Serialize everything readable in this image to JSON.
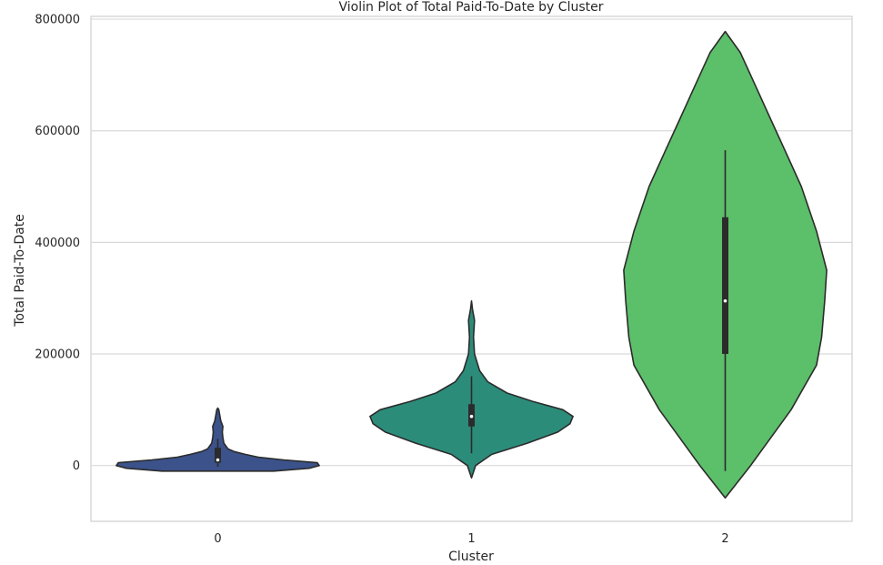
{
  "chart_data": {
    "type": "violin",
    "title": "Violin Plot of Total Paid-To-Date by Cluster",
    "xlabel": "Cluster",
    "ylabel": "Total Paid-To-Date",
    "categories": [
      "0",
      "1",
      "2"
    ],
    "ylim": [
      -100000,
      805000
    ],
    "yticks": [
      0,
      200000,
      400000,
      600000,
      800000
    ],
    "ytick_labels": [
      "0",
      "200000",
      "400000",
      "600000",
      "800000"
    ],
    "grid": true,
    "series": [
      {
        "category": "0",
        "color": "#3b528b",
        "min": -10000,
        "max": 103000,
        "q1": 5000,
        "median": 10000,
        "q3": 32000,
        "whisker_low": -2000,
        "whisker_high": 48000,
        "density": [
          [
            -10000,
            0.55
          ],
          [
            -5000,
            0.9
          ],
          [
            0,
            1.0
          ],
          [
            5000,
            0.98
          ],
          [
            10000,
            0.65
          ],
          [
            15000,
            0.4
          ],
          [
            20000,
            0.27
          ],
          [
            25000,
            0.16
          ],
          [
            30000,
            0.1
          ],
          [
            40000,
            0.06
          ],
          [
            50000,
            0.05
          ],
          [
            60000,
            0.045
          ],
          [
            70000,
            0.05
          ],
          [
            80000,
            0.03
          ],
          [
            90000,
            0.02
          ],
          [
            100000,
            0.01
          ],
          [
            103000,
            0.0
          ]
        ]
      },
      {
        "category": "1",
        "color": "#2c8c7a",
        "min": -22000,
        "max": 295000,
        "q1": 70000,
        "median": 88000,
        "q3": 110000,
        "whisker_low": 22000,
        "whisker_high": 160000,
        "density": [
          [
            -22000,
            0.0
          ],
          [
            0,
            0.04
          ],
          [
            20000,
            0.2
          ],
          [
            40000,
            0.55
          ],
          [
            60000,
            0.85
          ],
          [
            75000,
            0.97
          ],
          [
            88000,
            1.0
          ],
          [
            100000,
            0.9
          ],
          [
            115000,
            0.6
          ],
          [
            130000,
            0.35
          ],
          [
            150000,
            0.16
          ],
          [
            170000,
            0.08
          ],
          [
            200000,
            0.03
          ],
          [
            230000,
            0.02
          ],
          [
            260000,
            0.03
          ],
          [
            280000,
            0.01
          ],
          [
            295000,
            0.0
          ]
        ]
      },
      {
        "category": "2",
        "color": "#5cbf6a",
        "min": -58000,
        "max": 778000,
        "q1": 200000,
        "median": 295000,
        "q3": 445000,
        "whisker_low": -10000,
        "whisker_high": 565000,
        "density": [
          [
            -58000,
            0.0
          ],
          [
            0,
            0.25
          ],
          [
            100000,
            0.65
          ],
          [
            180000,
            0.9
          ],
          [
            230000,
            0.95
          ],
          [
            295000,
            0.98
          ],
          [
            350000,
            1.0
          ],
          [
            420000,
            0.9
          ],
          [
            500000,
            0.75
          ],
          [
            560000,
            0.6
          ],
          [
            620000,
            0.45
          ],
          [
            700000,
            0.25
          ],
          [
            740000,
            0.15
          ],
          [
            778000,
            0.0
          ]
        ]
      }
    ]
  }
}
